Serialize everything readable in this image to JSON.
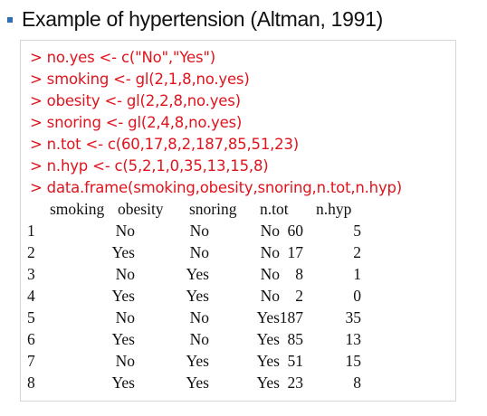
{
  "title": "Example of hypertension (Altman, 1991)",
  "commands": [
    "> no.yes <- c(\"No\",\"Yes\")",
    "> smoking <- gl(2,1,8,no.yes)",
    "> obesity <- gl(2,2,8,no.yes)",
    "> snoring <- gl(2,4,8,no.yes)",
    "> n.tot <- c(60,17,8,2,187,85,51,23)",
    "> n.hyp <- c(5,2,1,0,35,13,15,8)",
    "> data.frame(smoking,obesity,snoring,n.tot,n.hyp)"
  ],
  "output": {
    "columns": [
      "smoking",
      "obesity",
      "snoring",
      "n.tot",
      "n.hyp"
    ],
    "rows": [
      {
        "idx": "1",
        "smoking": "No",
        "obesity": "No",
        "snoring": "No",
        "n_tot": "60",
        "n_hyp": "5"
      },
      {
        "idx": "2",
        "smoking": "Yes",
        "obesity": "No",
        "snoring": "No",
        "n_tot": "17",
        "n_hyp": "2"
      },
      {
        "idx": "3",
        "smoking": "No",
        "obesity": "Yes",
        "snoring": "No",
        "n_tot": "8",
        "n_hyp": "1"
      },
      {
        "idx": "4",
        "smoking": "Yes",
        "obesity": "Yes",
        "snoring": "No",
        "n_tot": "2",
        "n_hyp": "0"
      },
      {
        "idx": "5",
        "smoking": "No",
        "obesity": "No",
        "snoring": "Yes",
        "n_tot": "187",
        "n_hyp": "35"
      },
      {
        "idx": "6",
        "smoking": "Yes",
        "obesity": "No",
        "snoring": "Yes",
        "n_tot": "85",
        "n_hyp": "13"
      },
      {
        "idx": "7",
        "smoking": "No",
        "obesity": "Yes",
        "snoring": "Yes",
        "n_tot": "51",
        "n_hyp": "15"
      },
      {
        "idx": "8",
        "smoking": "Yes",
        "obesity": "Yes",
        "snoring": "Yes",
        "n_tot": "23",
        "n_hyp": "8"
      }
    ]
  },
  "colors": {
    "bullet": "#2f6db5",
    "command_text": "#e0141d",
    "output_text": "#111111",
    "box_border": "#d6d6d6"
  },
  "icons": {
    "bullet": "square-bullet-icon"
  }
}
